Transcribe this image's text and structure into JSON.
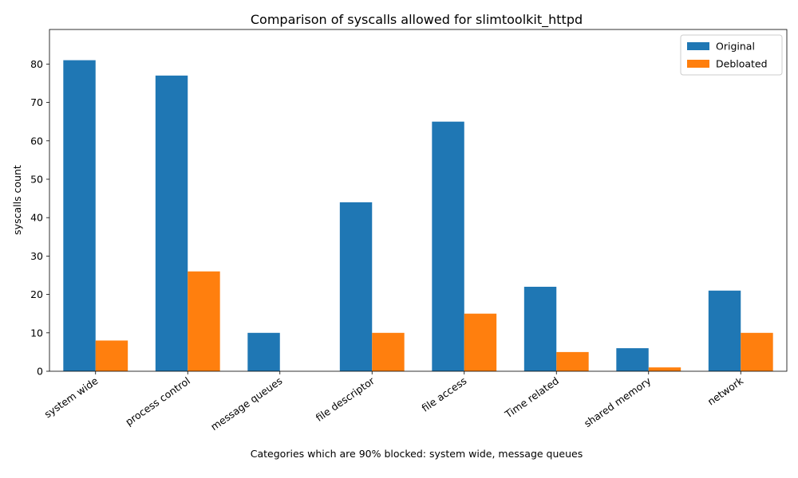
{
  "chart_data": {
    "type": "bar",
    "title": "Comparison of syscalls allowed for slimtoolkit_httpd",
    "xlabel": "Categories which are 90% blocked: system wide, message queues",
    "ylabel": "syscalls count",
    "categories": [
      "system wide",
      "process control",
      "message queues",
      "file descriptor",
      "file access",
      "Time related",
      "shared memory",
      "network"
    ],
    "series": [
      {
        "name": "Original",
        "color": "#1f77b4",
        "values": [
          81,
          77,
          10,
          44,
          65,
          22,
          6,
          21
        ]
      },
      {
        "name": "Debloated",
        "color": "#ff7f0e",
        "values": [
          8,
          26,
          0,
          10,
          15,
          5,
          1,
          10
        ]
      }
    ],
    "ylim": [
      0,
      89
    ],
    "yticks": [
      0,
      10,
      20,
      30,
      40,
      50,
      60,
      70,
      80
    ],
    "grid": false,
    "legend_position": "top-right"
  }
}
